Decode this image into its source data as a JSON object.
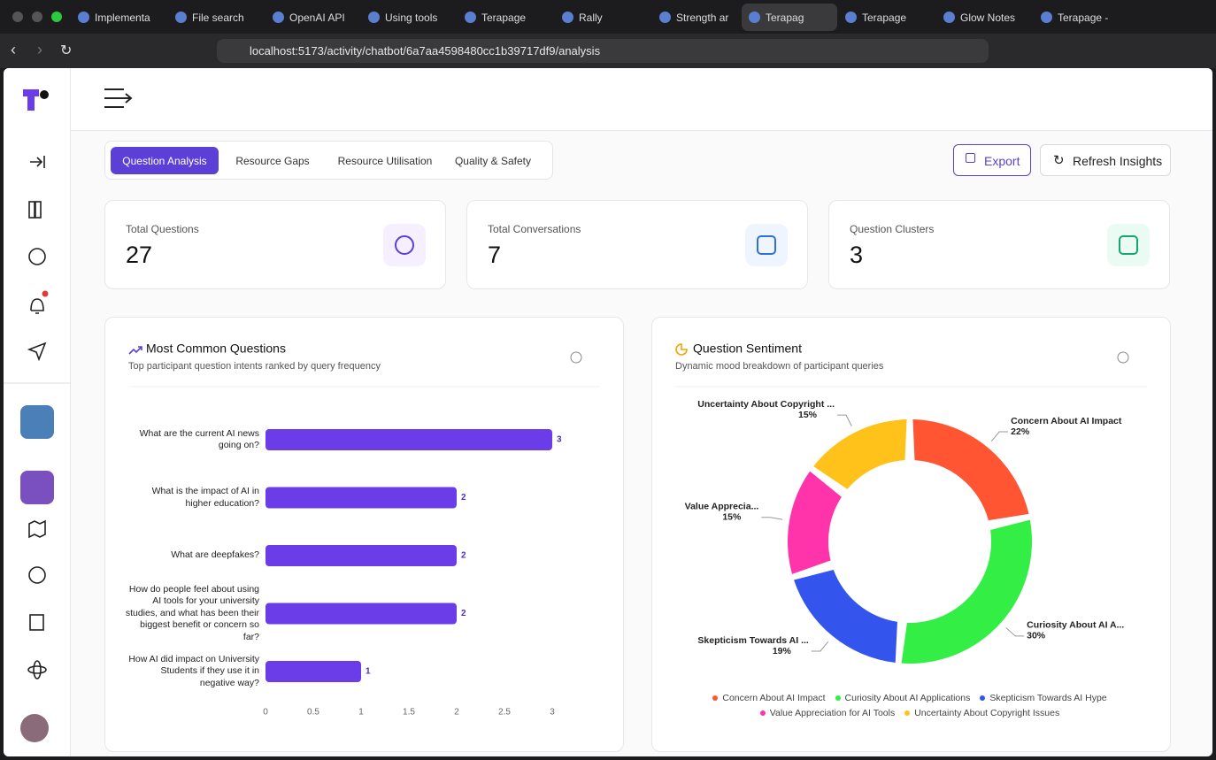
{
  "browser": {
    "tabs": [
      "Implementa",
      "File search",
      "OpenAI API",
      "Using tools",
      "Terapage",
      "Rally",
      "Strength ar",
      "Terapag",
      "Terapage",
      "Glow Notes",
      "Terapage -"
    ],
    "url": "localhost:5173/activity/chatbot/6a7aa4598480cc1b39717df9/analysis"
  },
  "nav_tabs": [
    "Question Analysis",
    "Resource Gaps",
    "Resource Utilisation",
    "Quality & Safety"
  ],
  "buttons": {
    "export": "Export",
    "refresh": "Refresh Insights"
  },
  "stats": [
    {
      "label": "Total Questions",
      "value": 27
    },
    {
      "label": "Total Conversations",
      "value": 7
    },
    {
      "label": "Question Clusters",
      "value": 3
    }
  ],
  "chart_data": [
    {
      "type": "bar",
      "orientation": "horizontal",
      "title": "Most Common Questions",
      "subtitle": "Top participant question intents ranked by query frequency",
      "categories": [
        "What are the current AI news going on?",
        "What is the impact of AI in higher education?",
        "What are deepfakes?",
        "How do people feel about using AI tools for your university studies, and what has been their biggest benefit or concern so far?",
        "How AI did impact on University Students if they use it in negative way?"
      ],
      "values": [
        3,
        2,
        2,
        2,
        1
      ],
      "color": "#6a3de8",
      "xlim": [
        0,
        3
      ],
      "xticks": [
        0,
        0.5,
        1,
        1.5,
        2,
        2.5,
        3
      ]
    },
    {
      "type": "pie",
      "donut": true,
      "title": "Question Sentiment",
      "subtitle": "Dynamic mood breakdown of participant queries",
      "categories": [
        "Concern About AI Impact",
        "Curiosity About AI Applications",
        "Skepticism Towards AI Hype",
        "Value Appreciation for AI Tools",
        "Uncertainty About Copyright Issues"
      ],
      "label_texts": [
        "Concern About AI Impact",
        "Curiosity About AI A...",
        "Skepticism Towards AI ...",
        "Value Apprecia...",
        "Uncertainty About Copyright ..."
      ],
      "values": [
        22,
        30,
        19,
        15,
        15
      ],
      "value_labels": [
        "22%",
        "30%",
        "19%",
        "15%",
        "15%"
      ],
      "colors": [
        "#ff5533",
        "#33ee44",
        "#3355ee",
        "#ff33aa",
        "#ffc21a"
      ],
      "legend": "bottom"
    }
  ]
}
